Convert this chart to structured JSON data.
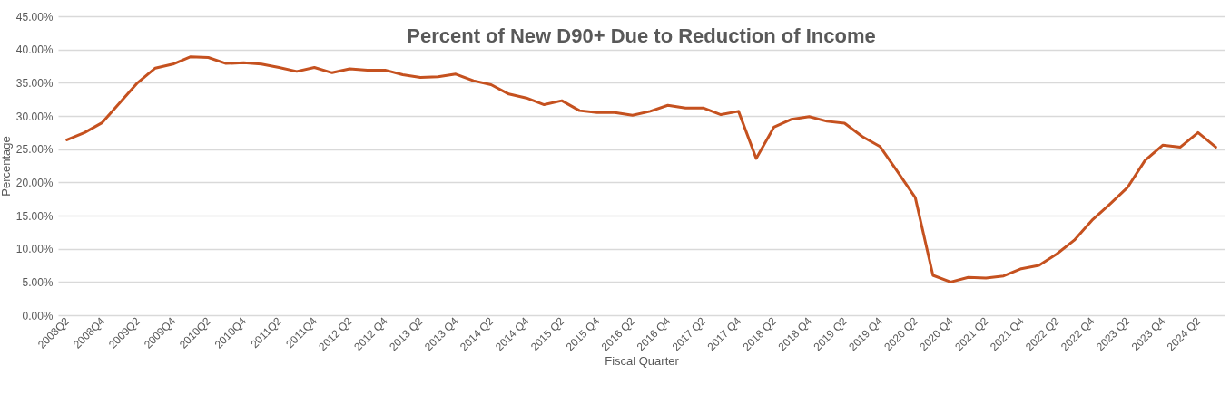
{
  "chart_data": {
    "type": "line",
    "title": "Percent of New D90+ Due to Reduction of Income",
    "xlabel": "Fiscal Quarter",
    "ylabel": "Percentage",
    "categories": [
      "2008Q2",
      null,
      "2008Q4",
      null,
      "2009Q2",
      null,
      "2009Q4",
      null,
      "2010Q2",
      null,
      "2010Q4",
      null,
      "2011Q2",
      null,
      "2011Q4",
      null,
      "2012 Q2",
      null,
      "2012 Q4",
      null,
      "2013 Q2",
      null,
      "2013 Q4",
      null,
      "2014 Q2",
      null,
      "2014 Q4",
      null,
      "2015 Q2",
      null,
      "2015 Q4",
      null,
      "2016 Q2",
      null,
      "2016 Q4",
      null,
      "2017 Q2",
      null,
      "2017 Q4",
      null,
      "2018 Q2",
      null,
      "2018 Q4",
      null,
      "2019 Q2",
      null,
      "2019 Q4",
      null,
      "2020 Q2",
      null,
      "2020 Q4",
      null,
      "2021 Q2",
      null,
      "2021 Q4",
      null,
      "2022 Q2",
      null,
      "2022 Q4",
      null,
      "2023 Q2",
      null,
      "2023 Q4",
      null,
      "2024 Q2",
      null
    ],
    "series": [
      {
        "color": "#c5511f",
        "values": [
          26.4,
          27.5,
          29.0,
          32.0,
          35.0,
          37.2,
          37.8,
          38.9,
          38.8,
          37.9,
          38.0,
          37.8,
          37.3,
          36.7,
          37.3,
          36.5,
          37.1,
          36.9,
          36.9,
          36.2,
          35.8,
          35.9,
          36.3,
          35.3,
          34.7,
          33.3,
          32.7,
          31.7,
          32.3,
          30.8,
          30.5,
          30.5,
          30.1,
          30.7,
          31.6,
          31.2,
          31.2,
          30.2,
          30.7,
          23.6,
          28.3,
          29.5,
          29.9,
          29.2,
          28.9,
          26.9,
          25.4,
          21.6,
          17.7,
          6.0,
          5.0,
          5.7,
          5.6,
          5.9,
          7.0,
          7.5,
          9.2,
          11.3,
          14.3,
          16.7,
          19.2,
          23.3,
          25.6,
          25.3,
          27.5,
          25.3
        ]
      }
    ],
    "ylim": [
      0,
      45
    ],
    "yticks": [
      {
        "value": 0,
        "label": "0.00%"
      },
      {
        "value": 5,
        "label": "5.00%"
      },
      {
        "value": 10,
        "label": "10.00%"
      },
      {
        "value": 15,
        "label": "15.00%"
      },
      {
        "value": 20,
        "label": "20.00%"
      },
      {
        "value": 25,
        "label": "25.00%"
      },
      {
        "value": 30,
        "label": "30.00%"
      },
      {
        "value": 35,
        "label": "35.00%"
      },
      {
        "value": 40,
        "label": "40.00%"
      },
      {
        "value": 45,
        "label": "45.00%"
      }
    ],
    "grid": "y",
    "marker": "none",
    "line_style": "solid"
  }
}
